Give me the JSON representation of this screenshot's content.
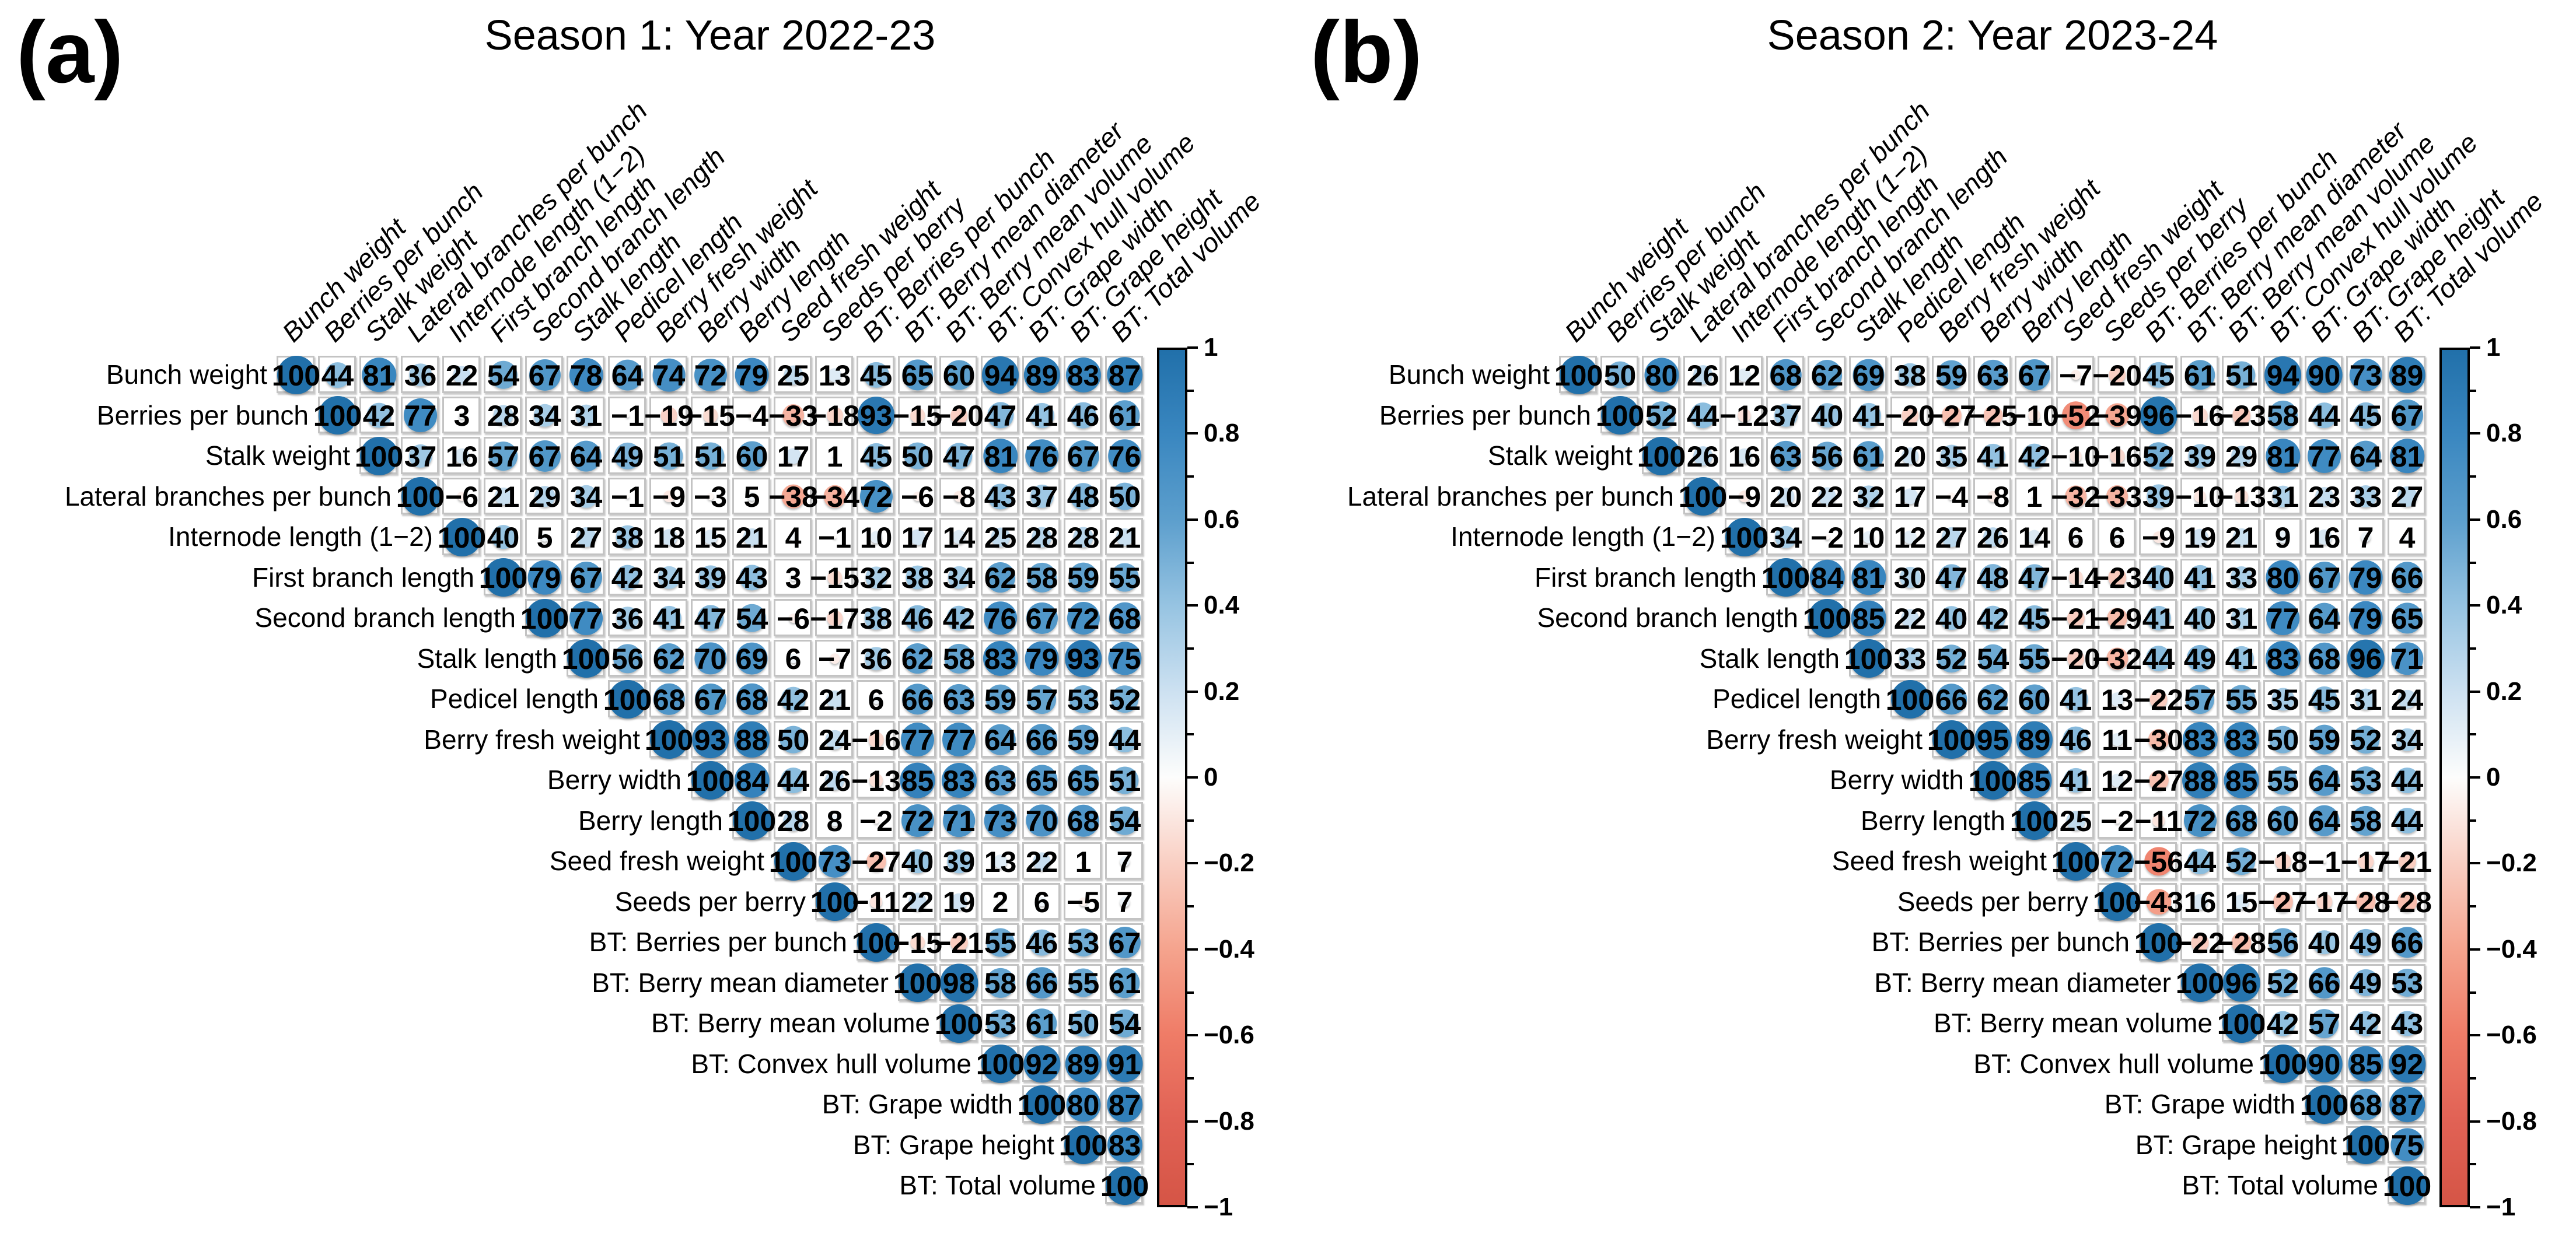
{
  "style": {
    "positive_color": "#2170aa",
    "negative_color": "#d55546",
    "grid_color": "#c3c3c3",
    "background_color": "#ffffff",
    "colormap": [
      [
        -1.0,
        [
          213,
          85,
          70
        ]
      ],
      [
        -0.8,
        [
          225,
          98,
          85
        ]
      ],
      [
        -0.6,
        [
          239,
          124,
          103
        ]
      ],
      [
        -0.4,
        [
          245,
          164,
          142
        ]
      ],
      [
        -0.2,
        [
          249,
          207,
          195
        ]
      ],
      [
        0.0,
        [
          253,
          253,
          252
        ]
      ],
      [
        0.2,
        [
          205,
          225,
          241
        ]
      ],
      [
        0.4,
        [
          151,
          196,
          226
        ]
      ],
      [
        0.6,
        [
          93,
          159,
          205
        ]
      ],
      [
        0.8,
        [
          58,
          135,
          192
        ]
      ],
      [
        1.0,
        [
          33,
          112,
          170
        ]
      ]
    ]
  },
  "colorbar": {
    "range": [
      -1,
      1
    ],
    "tick_values": [
      1,
      0.8,
      0.6,
      0.4,
      0.2,
      0,
      -0.2,
      -0.4,
      -0.6,
      -0.8,
      -1
    ],
    "tick_labels": [
      "1",
      "0.8",
      "0.6",
      "0.4",
      "0.2",
      "0",
      "−0.2",
      "−0.4",
      "−0.6",
      "−0.8",
      "−1"
    ]
  },
  "chart_data": [
    {
      "type": "heatmap",
      "subtype": "correlation-matrix-upper-triangle",
      "panel_label": "(a)",
      "title": "Season 1: Year 2022-23",
      "values_unit": "Pearson correlation × 100",
      "legend_position": "right-colorbar",
      "colorbar_range": [
        -1,
        1
      ],
      "variables": [
        "Bunch weight",
        "Berries per bunch",
        "Stalk weight",
        "Lateral branches per bunch",
        "Internode length (1−2)",
        "First branch length",
        "Second branch length",
        "Stalk length",
        "Pedicel length",
        "Berry fresh weight",
        "Berry width",
        "Berry length",
        "Seed fresh weight",
        "Seeds per berry",
        "BT: Berries per bunch",
        "BT: Berry mean diameter",
        "BT: Berry mean volume",
        "BT: Convex hull volume",
        "BT: Grape width",
        "BT: Grape height",
        "BT: Total volume"
      ],
      "matrix_rows_from_diagonal": [
        [
          100,
          44,
          81,
          36,
          22,
          54,
          67,
          78,
          64,
          74,
          72,
          79,
          25,
          13,
          45,
          65,
          60,
          94,
          89,
          83,
          87
        ],
        [
          100,
          42,
          77,
          3,
          28,
          34,
          31,
          -1,
          -19,
          -15,
          -4,
          -33,
          -18,
          93,
          -15,
          -20,
          47,
          41,
          46,
          61
        ],
        [
          100,
          37,
          16,
          57,
          67,
          64,
          49,
          51,
          51,
          60,
          17,
          1,
          45,
          50,
          47,
          81,
          76,
          67,
          76
        ],
        [
          100,
          -6,
          21,
          29,
          34,
          -1,
          -9,
          -3,
          5,
          -38,
          -34,
          72,
          -6,
          -8,
          43,
          37,
          48,
          50
        ],
        [
          100,
          40,
          5,
          27,
          38,
          18,
          15,
          21,
          4,
          -1,
          10,
          17,
          14,
          25,
          28,
          28,
          21
        ],
        [
          100,
          79,
          67,
          42,
          34,
          39,
          43,
          3,
          -15,
          32,
          38,
          34,
          62,
          58,
          59,
          55
        ],
        [
          100,
          77,
          36,
          41,
          47,
          54,
          -6,
          -17,
          38,
          46,
          42,
          76,
          67,
          72,
          68
        ],
        [
          100,
          56,
          62,
          70,
          69,
          6,
          -7,
          36,
          62,
          58,
          83,
          79,
          93,
          75
        ],
        [
          100,
          68,
          67,
          68,
          42,
          21,
          6,
          66,
          63,
          59,
          57,
          53,
          52
        ],
        [
          100,
          93,
          88,
          50,
          24,
          -16,
          77,
          77,
          64,
          66,
          59,
          44
        ],
        [
          100,
          84,
          44,
          26,
          -13,
          85,
          83,
          63,
          65,
          65,
          51
        ],
        [
          100,
          28,
          8,
          -2,
          72,
          71,
          73,
          70,
          68,
          54
        ],
        [
          100,
          73,
          -27,
          40,
          39,
          13,
          22,
          1,
          7
        ],
        [
          100,
          -11,
          22,
          19,
          2,
          6,
          -5,
          7
        ],
        [
          100,
          -15,
          -21,
          55,
          46,
          53,
          67
        ],
        [
          100,
          98,
          58,
          66,
          55,
          61
        ],
        [
          100,
          53,
          61,
          50,
          54
        ],
        [
          100,
          92,
          89,
          91
        ],
        [
          100,
          80,
          87
        ],
        [
          100,
          83
        ],
        [
          100
        ]
      ]
    },
    {
      "type": "heatmap",
      "subtype": "correlation-matrix-upper-triangle",
      "panel_label": "(b)",
      "title": "Season 2: Year 2023-24",
      "values_unit": "Pearson correlation × 100",
      "legend_position": "right-colorbar",
      "colorbar_range": [
        -1,
        1
      ],
      "variables": [
        "Bunch weight",
        "Berries per bunch",
        "Stalk weight",
        "Lateral branches per bunch",
        "Internode length (1−2)",
        "First branch length",
        "Second branch length",
        "Stalk length",
        "Pedicel length",
        "Berry fresh weight",
        "Berry width",
        "Berry length",
        "Seed fresh weight",
        "Seeds per berry",
        "BT: Berries per bunch",
        "BT: Berry mean diameter",
        "BT: Berry mean volume",
        "BT: Convex hull volume",
        "BT: Grape width",
        "BT: Grape height",
        "BT: Total volume"
      ],
      "matrix_rows_from_diagonal": [
        [
          100,
          50,
          80,
          26,
          12,
          68,
          62,
          69,
          38,
          59,
          63,
          67,
          -7,
          -20,
          45,
          61,
          51,
          94,
          90,
          73,
          89
        ],
        [
          100,
          52,
          44,
          -12,
          37,
          40,
          41,
          -20,
          -27,
          -25,
          -10,
          -52,
          -39,
          96,
          -16,
          -23,
          58,
          44,
          45,
          67
        ],
        [
          100,
          26,
          16,
          63,
          56,
          61,
          20,
          35,
          41,
          42,
          -10,
          -16,
          52,
          39,
          29,
          81,
          77,
          64,
          81
        ],
        [
          100,
          -9,
          20,
          22,
          32,
          17,
          -4,
          -8,
          1,
          -32,
          -33,
          39,
          -10,
          -13,
          31,
          23,
          33,
          27
        ],
        [
          100,
          34,
          -2,
          10,
          12,
          27,
          26,
          14,
          6,
          6,
          -9,
          19,
          21,
          9,
          16,
          7,
          4
        ],
        [
          100,
          84,
          81,
          30,
          47,
          48,
          47,
          -14,
          -23,
          40,
          41,
          33,
          80,
          67,
          79,
          66
        ],
        [
          100,
          85,
          22,
          40,
          42,
          45,
          -21,
          -29,
          41,
          40,
          31,
          77,
          64,
          79,
          65
        ],
        [
          100,
          33,
          52,
          54,
          55,
          -20,
          -32,
          44,
          49,
          41,
          83,
          68,
          96,
          71
        ],
        [
          100,
          66,
          62,
          60,
          41,
          13,
          -22,
          57,
          55,
          35,
          45,
          31,
          24
        ],
        [
          100,
          95,
          89,
          46,
          11,
          -30,
          83,
          83,
          50,
          59,
          52,
          34
        ],
        [
          100,
          85,
          41,
          12,
          -27,
          88,
          85,
          55,
          64,
          53,
          44
        ],
        [
          100,
          25,
          -2,
          -11,
          72,
          68,
          60,
          64,
          58,
          44
        ],
        [
          100,
          72,
          -56,
          44,
          52,
          -18,
          -1,
          -17,
          -21
        ],
        [
          100,
          -43,
          16,
          15,
          -27,
          -17,
          -28,
          -28
        ],
        [
          100,
          -22,
          -28,
          56,
          40,
          49,
          66
        ],
        [
          100,
          96,
          52,
          66,
          49,
          53
        ],
        [
          100,
          42,
          57,
          42,
          43
        ],
        [
          100,
          90,
          85,
          92
        ],
        [
          100,
          68,
          87
        ],
        [
          100,
          75
        ],
        [
          100
        ]
      ]
    }
  ]
}
